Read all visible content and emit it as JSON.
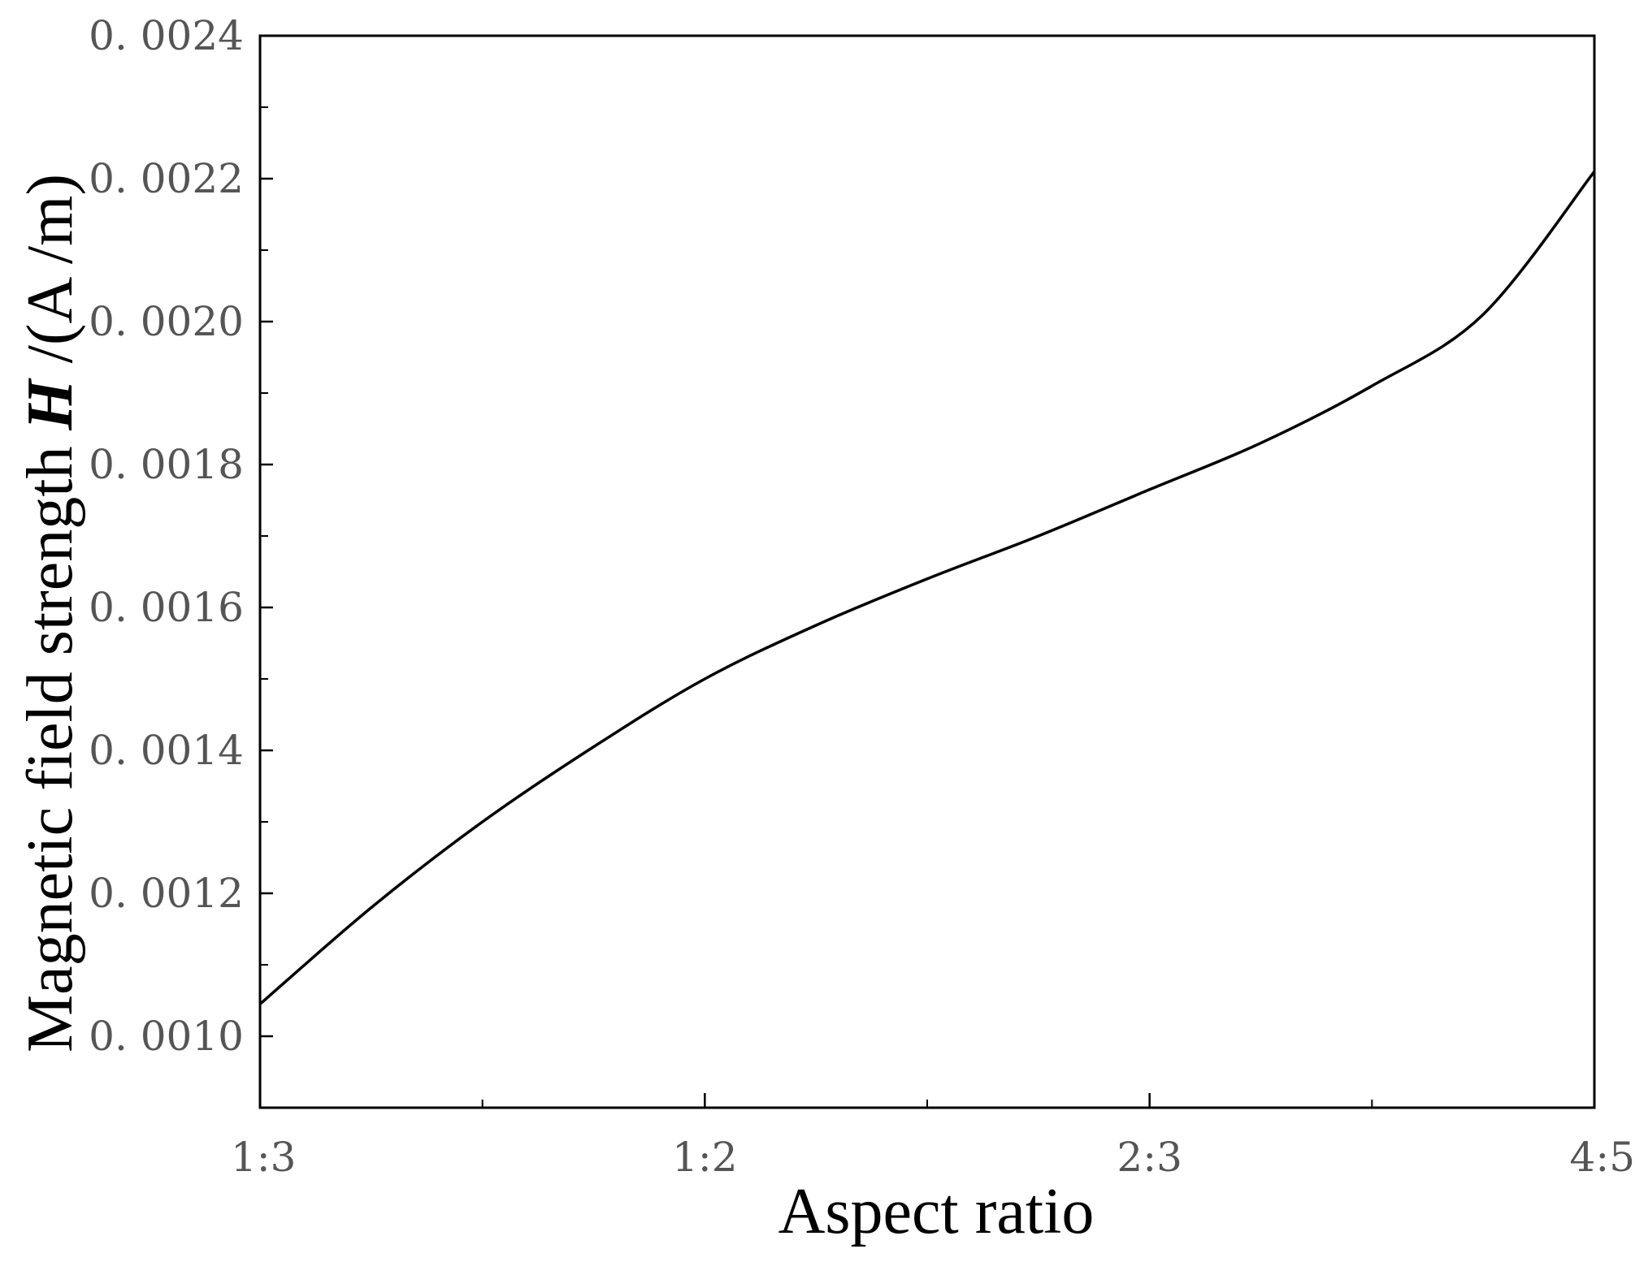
{
  "chart_data": {
    "type": "line",
    "title": "",
    "xlabel": "Aspect ratio",
    "ylabel": {
      "prefix": "Magnetic field strength ",
      "symbol": "H",
      "suffix": " /(A /m)"
    },
    "x_categories": [
      "1:3",
      "1:2",
      "2:3",
      "4:5"
    ],
    "ylim": [
      0.0009,
      0.0024
    ],
    "yticks": [
      0.001,
      0.0012,
      0.0014,
      0.0016,
      0.0018,
      0.002,
      0.0022,
      0.0024
    ],
    "ytick_labels": [
      "0. 0010",
      "0. 0012",
      "0. 0014",
      "0. 0016",
      "0. 0018",
      "0. 0020",
      "0. 0022",
      "0. 0024"
    ],
    "grid": false,
    "series": [
      {
        "x": [
          0,
          0.25,
          0.5,
          0.75,
          1.0,
          1.25,
          1.5,
          1.75,
          2.0,
          2.25,
          2.5,
          2.75,
          3.0
        ],
        "values": [
          0.001045,
          0.00118,
          0.0013,
          0.001405,
          0.0015,
          0.001575,
          0.00164,
          0.0017,
          0.001765,
          0.00183,
          0.00191,
          0.00201,
          0.00221
        ]
      }
    ]
  }
}
